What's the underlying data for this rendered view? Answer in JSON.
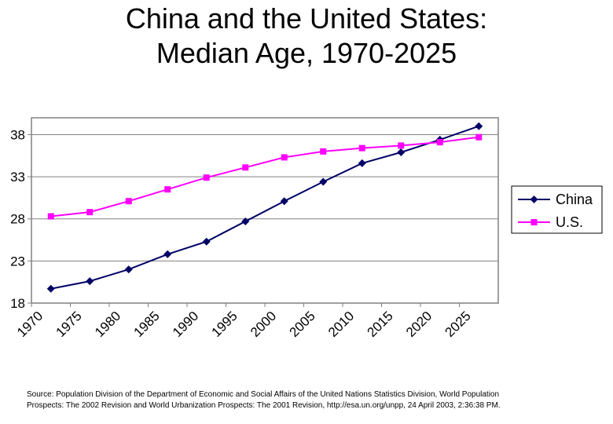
{
  "chart_data": {
    "type": "line",
    "title": [
      "China and the United States:",
      "Median Age, 1970-2025"
    ],
    "categories": [
      "1970",
      "1975",
      "1980",
      "1985",
      "1990",
      "1995",
      "2000",
      "2005",
      "2010",
      "2015",
      "2020",
      "2025"
    ],
    "x": [
      1970,
      1975,
      1980,
      1985,
      1990,
      1995,
      2000,
      2005,
      2010,
      2015,
      2020,
      2025
    ],
    "series": [
      {
        "name": "China",
        "color": "#000066",
        "marker": "diamond",
        "values": [
          19.7,
          20.6,
          22.0,
          23.8,
          25.3,
          27.7,
          30.1,
          32.4,
          34.6,
          35.9,
          37.4,
          39.0
        ]
      },
      {
        "name": "U.S.",
        "color": "#FF00FF",
        "marker": "square",
        "values": [
          28.3,
          28.8,
          30.1,
          31.5,
          32.9,
          34.1,
          35.3,
          36.0,
          36.4,
          36.7,
          37.1,
          37.7
        ]
      }
    ],
    "yticks": [
      18,
      23,
      28,
      33,
      38
    ],
    "ylim": [
      18,
      40
    ],
    "xlabel": "",
    "ylabel": "",
    "grid": true,
    "legend": "right"
  },
  "source_note": [
    "Source: Population Division of the Department of Economic and Social Affairs of the United Nations Statistics Division, World Population",
    "Prospects: The 2002 Revision and World Urbanization Prospects: The 2001 Revision, http://esa.un.org/unpp, 24 April 2003, 2:36:38 PM."
  ]
}
